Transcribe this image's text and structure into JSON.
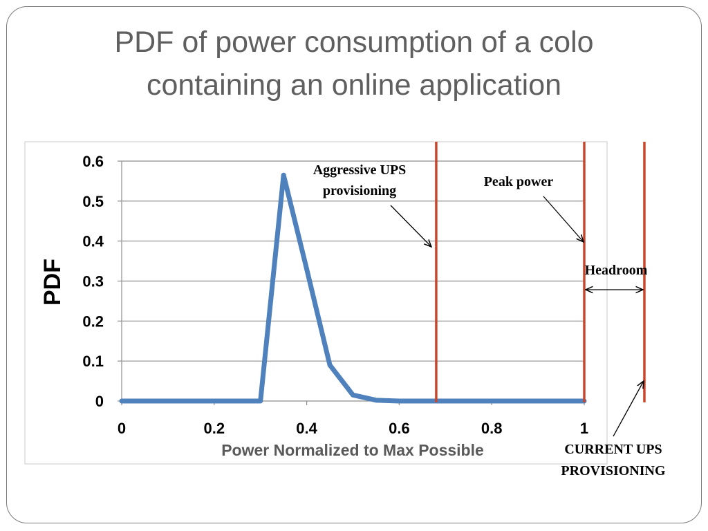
{
  "slide": {
    "title_line1": "PDF of power consumption of a colo",
    "title_line2": "containing an online application"
  },
  "chart_data": {
    "type": "line",
    "title": "",
    "xlabel": "Power Normalized to Max Possible",
    "ylabel": "PDF",
    "xlim": [
      0,
      1
    ],
    "ylim": [
      0,
      0.6
    ],
    "x_ticks": [
      0,
      0.2,
      0.4,
      0.6,
      0.8,
      1
    ],
    "x_tick_labels": [
      "0",
      "0.2",
      "0.4",
      "0.6",
      "0.8",
      "1"
    ],
    "y_ticks": [
      0,
      0.1,
      0.2,
      0.3,
      0.4,
      0.5,
      0.6
    ],
    "y_tick_labels": [
      "0",
      "0.1",
      "0.2",
      "0.3",
      "0.4",
      "0.5",
      "0.6"
    ],
    "grid": true,
    "legend": "none",
    "series": [
      {
        "x": [
          0,
          0.05,
          0.1,
          0.15,
          0.2,
          0.25,
          0.3,
          0.35,
          0.4,
          0.45,
          0.5,
          0.55,
          0.6,
          0.65,
          0.7,
          0.75,
          0.8,
          0.85,
          0.9,
          0.95,
          1
        ],
        "values": [
          0,
          0,
          0,
          0,
          0,
          0,
          0,
          0.565,
          0.33,
          0.09,
          0.015,
          0.002,
          0,
          0,
          0,
          0,
          0,
          0,
          0,
          0,
          0
        ],
        "color": "#4f81bd"
      }
    ],
    "vertical_lines": [
      {
        "x": 0.68,
        "color": "#c8462b"
      },
      {
        "x": 1.0,
        "color": "#c8462b"
      },
      {
        "x": 1.13,
        "color": "#c8462b"
      }
    ],
    "annotations": [
      {
        "lines": [
          "Aggressive UPS",
          "provisioning"
        ]
      },
      {
        "lines": [
          "Peak power"
        ]
      },
      {
        "lines": [
          "Headroom"
        ]
      },
      {
        "lines": [
          "CURRENT UPS",
          "PROVISIONING"
        ]
      }
    ]
  }
}
